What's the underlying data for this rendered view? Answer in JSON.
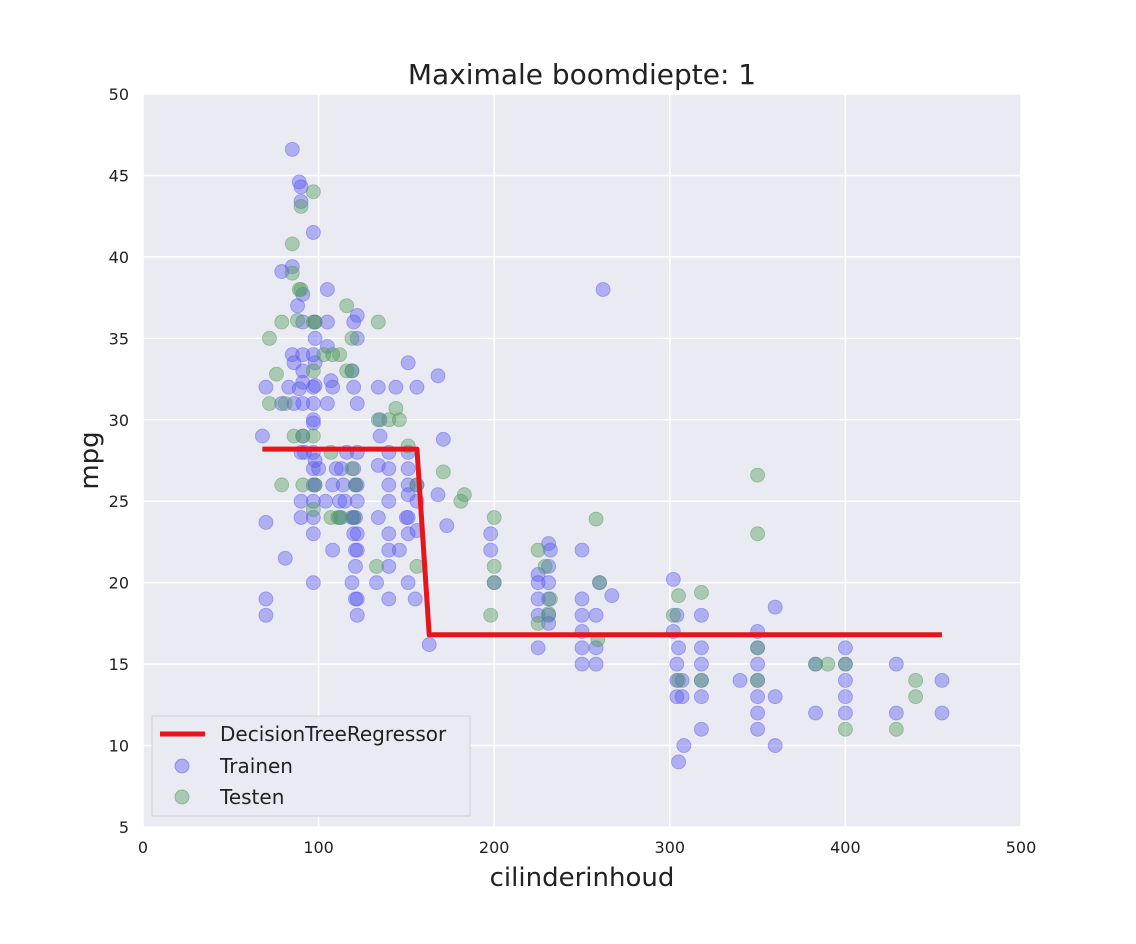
{
  "chart_data": {
    "type": "scatter",
    "title": "Maximale boomdiepte: 1",
    "xlabel": "cilinderinhoud",
    "ylabel": "mpg",
    "xlim": [
      0,
      500
    ],
    "ylim": [
      5,
      50
    ],
    "xticks": [
      0,
      100,
      200,
      300,
      400,
      500
    ],
    "yticks": [
      5,
      10,
      15,
      20,
      25,
      30,
      35,
      40,
      45,
      50
    ],
    "grid": true,
    "legend_position": "lower-left",
    "colors": {
      "background": "#eaeaf2",
      "grid": "#ffffff",
      "train": "#5a5af0",
      "test": "#4f9a5a",
      "line": "#e8141b"
    },
    "legend": [
      {
        "label": "DecisionTreeRegressor",
        "kind": "line"
      },
      {
        "label": "Trainen",
        "kind": "train"
      },
      {
        "label": "Testen",
        "kind": "test"
      }
    ],
    "line_series": {
      "name": "DecisionTreeRegressor",
      "points": [
        [
          68,
          28.2
        ],
        [
          156,
          28.2
        ],
        [
          163,
          16.8
        ],
        [
          455,
          16.8
        ]
      ]
    },
    "series": [
      {
        "name": "Trainen",
        "points": [
          [
            68,
            29
          ],
          [
            70,
            32
          ],
          [
            70,
            23.7
          ],
          [
            70,
            19
          ],
          [
            70,
            18
          ],
          [
            79,
            31
          ],
          [
            79,
            39.1
          ],
          [
            81,
            21.5
          ],
          [
            83,
            32
          ],
          [
            85,
            34
          ],
          [
            85,
            46.6
          ],
          [
            85,
            39.4
          ],
          [
            86,
            31
          ],
          [
            86,
            33.5
          ],
          [
            88,
            37
          ],
          [
            89,
            31.9
          ],
          [
            89,
            44.6
          ],
          [
            90,
            44.3
          ],
          [
            90,
            43.4
          ],
          [
            90,
            28
          ],
          [
            90,
            24
          ],
          [
            90,
            25
          ],
          [
            91,
            36
          ],
          [
            91,
            34
          ],
          [
            91,
            33
          ],
          [
            91,
            32.3
          ],
          [
            91,
            31
          ],
          [
            91,
            29
          ],
          [
            91,
            37.7
          ],
          [
            92,
            28
          ],
          [
            97,
            34
          ],
          [
            97,
            32
          ],
          [
            97,
            31
          ],
          [
            97,
            30
          ],
          [
            97,
            29.8
          ],
          [
            97,
            28
          ],
          [
            97,
            27
          ],
          [
            97,
            26
          ],
          [
            97,
            25
          ],
          [
            97,
            24
          ],
          [
            97,
            23
          ],
          [
            97,
            20
          ],
          [
            97,
            41.5
          ],
          [
            98,
            36
          ],
          [
            98,
            35
          ],
          [
            98,
            27.5
          ],
          [
            98,
            26
          ],
          [
            98,
            32.1
          ],
          [
            98,
            33.5
          ],
          [
            100,
            27
          ],
          [
            104,
            25
          ],
          [
            105,
            34.5
          ],
          [
            105,
            38
          ],
          [
            105,
            36
          ],
          [
            105,
            31
          ],
          [
            107,
            32.4
          ],
          [
            108,
            26
          ],
          [
            108,
            22
          ],
          [
            108,
            32
          ],
          [
            110,
            27
          ],
          [
            112,
            25
          ],
          [
            112,
            24
          ],
          [
            113,
            27
          ],
          [
            114,
            26
          ],
          [
            115,
            25
          ],
          [
            116,
            28
          ],
          [
            119,
            24
          ],
          [
            119,
            20
          ],
          [
            119,
            33
          ],
          [
            120,
            36
          ],
          [
            120,
            32
          ],
          [
            120,
            27
          ],
          [
            120,
            23
          ],
          [
            120,
            24
          ],
          [
            121,
            24
          ],
          [
            121,
            21
          ],
          [
            121,
            19
          ],
          [
            121,
            22
          ],
          [
            121,
            26
          ],
          [
            122,
            36.4
          ],
          [
            122,
            35
          ],
          [
            122,
            31
          ],
          [
            122,
            28
          ],
          [
            122,
            26
          ],
          [
            122,
            25
          ],
          [
            122,
            23
          ],
          [
            122,
            22
          ],
          [
            122,
            18
          ],
          [
            122,
            19
          ],
          [
            133,
            20
          ],
          [
            134,
            32
          ],
          [
            134,
            27.2
          ],
          [
            134,
            24
          ],
          [
            135,
            29
          ],
          [
            135,
            30
          ],
          [
            140,
            21
          ],
          [
            140,
            28
          ],
          [
            140,
            27
          ],
          [
            140,
            26
          ],
          [
            140,
            25
          ],
          [
            140,
            23
          ],
          [
            140,
            22
          ],
          [
            140,
            19
          ],
          [
            144,
            32
          ],
          [
            146,
            22
          ],
          [
            150,
            24
          ],
          [
            151,
            33.5
          ],
          [
            151,
            27
          ],
          [
            151,
            28
          ],
          [
            151,
            26
          ],
          [
            151,
            25.4
          ],
          [
            151,
            24
          ],
          [
            151,
            23
          ],
          [
            151,
            20
          ],
          [
            155,
            19
          ],
          [
            156,
            25
          ],
          [
            156,
            26
          ],
          [
            156,
            32
          ],
          [
            156,
            23.2
          ],
          [
            163,
            16.2
          ],
          [
            168,
            25.4
          ],
          [
            168,
            32.7
          ],
          [
            171,
            28.8
          ],
          [
            173,
            23.5
          ],
          [
            198,
            22
          ],
          [
            198,
            23
          ],
          [
            200,
            20
          ],
          [
            225,
            20
          ],
          [
            225,
            19
          ],
          [
            225,
            18
          ],
          [
            225,
            16
          ],
          [
            225,
            20.5
          ],
          [
            231,
            22.4
          ],
          [
            231,
            21
          ],
          [
            231,
            20
          ],
          [
            231,
            19
          ],
          [
            231,
            18
          ],
          [
            231,
            17.5
          ],
          [
            232,
            22
          ],
          [
            250,
            22
          ],
          [
            250,
            19
          ],
          [
            250,
            18
          ],
          [
            250,
            17
          ],
          [
            250,
            16
          ],
          [
            250,
            15
          ],
          [
            258,
            18
          ],
          [
            258,
            16
          ],
          [
            258,
            15
          ],
          [
            260,
            20
          ],
          [
            262,
            38
          ],
          [
            267,
            19.2
          ],
          [
            302,
            20.2
          ],
          [
            302,
            17
          ],
          [
            304,
            18
          ],
          [
            304,
            15
          ],
          [
            304,
            14
          ],
          [
            304,
            13
          ],
          [
            305,
            16
          ],
          [
            305,
            9
          ],
          [
            307,
            14
          ],
          [
            307,
            13
          ],
          [
            308,
            10
          ],
          [
            318,
            18
          ],
          [
            318,
            16
          ],
          [
            318,
            15
          ],
          [
            318,
            14
          ],
          [
            318,
            13
          ],
          [
            318,
            11
          ],
          [
            340,
            14
          ],
          [
            350,
            16
          ],
          [
            350,
            15
          ],
          [
            350,
            14
          ],
          [
            350,
            13
          ],
          [
            350,
            12
          ],
          [
            350,
            11
          ],
          [
            350,
            17
          ],
          [
            360,
            13
          ],
          [
            360,
            18.5
          ],
          [
            360,
            10
          ],
          [
            383,
            12
          ],
          [
            383,
            15
          ],
          [
            400,
            16
          ],
          [
            400,
            15
          ],
          [
            400,
            14
          ],
          [
            400,
            13
          ],
          [
            400,
            12
          ],
          [
            429,
            15
          ],
          [
            429,
            12
          ],
          [
            455,
            14
          ],
          [
            455,
            12
          ]
        ]
      },
      {
        "name": "Testen",
        "points": [
          [
            72,
            35
          ],
          [
            72,
            31
          ],
          [
            76,
            32.8
          ],
          [
            79,
            36
          ],
          [
            79,
            26
          ],
          [
            81,
            31
          ],
          [
            85,
            40.8
          ],
          [
            85,
            39
          ],
          [
            86,
            29
          ],
          [
            88,
            36.1
          ],
          [
            89,
            38
          ],
          [
            90,
            38
          ],
          [
            90,
            43.1
          ],
          [
            91,
            29
          ],
          [
            91,
            26
          ],
          [
            97,
            44
          ],
          [
            97,
            36
          ],
          [
            97,
            33
          ],
          [
            97,
            29
          ],
          [
            97,
            24.5
          ],
          [
            98,
            26
          ],
          [
            98,
            36
          ],
          [
            103,
            34
          ],
          [
            107,
            28
          ],
          [
            107,
            24
          ],
          [
            108,
            34
          ],
          [
            111,
            24
          ],
          [
            112,
            34
          ],
          [
            113,
            24
          ],
          [
            116,
            37
          ],
          [
            116,
            33
          ],
          [
            119,
            35
          ],
          [
            119,
            33
          ],
          [
            119,
            27
          ],
          [
            120,
            24
          ],
          [
            121,
            26
          ],
          [
            133,
            21
          ],
          [
            134,
            36
          ],
          [
            134,
            30
          ],
          [
            140,
            30
          ],
          [
            144,
            30.7
          ],
          [
            146,
            30
          ],
          [
            151,
            28.4
          ],
          [
            156,
            21
          ],
          [
            156,
            26
          ],
          [
            171,
            26.8
          ],
          [
            181,
            25
          ],
          [
            183,
            25.4
          ],
          [
            198,
            18
          ],
          [
            200,
            24
          ],
          [
            200,
            21
          ],
          [
            200,
            20
          ],
          [
            225,
            22
          ],
          [
            225,
            17.5
          ],
          [
            229,
            21
          ],
          [
            231,
            18.1
          ],
          [
            232,
            19
          ],
          [
            258,
            23.9
          ],
          [
            260,
            20
          ],
          [
            259,
            16.5
          ],
          [
            302,
            18
          ],
          [
            305,
            19.2
          ],
          [
            305,
            14
          ],
          [
            318,
            19.4
          ],
          [
            318,
            14
          ],
          [
            350,
            26.6
          ],
          [
            350,
            23
          ],
          [
            350,
            16
          ],
          [
            350,
            14
          ],
          [
            383,
            15
          ],
          [
            390,
            15
          ],
          [
            400,
            15
          ],
          [
            400,
            11
          ],
          [
            429,
            11
          ],
          [
            440,
            14
          ],
          [
            440,
            13
          ]
        ]
      }
    ]
  }
}
